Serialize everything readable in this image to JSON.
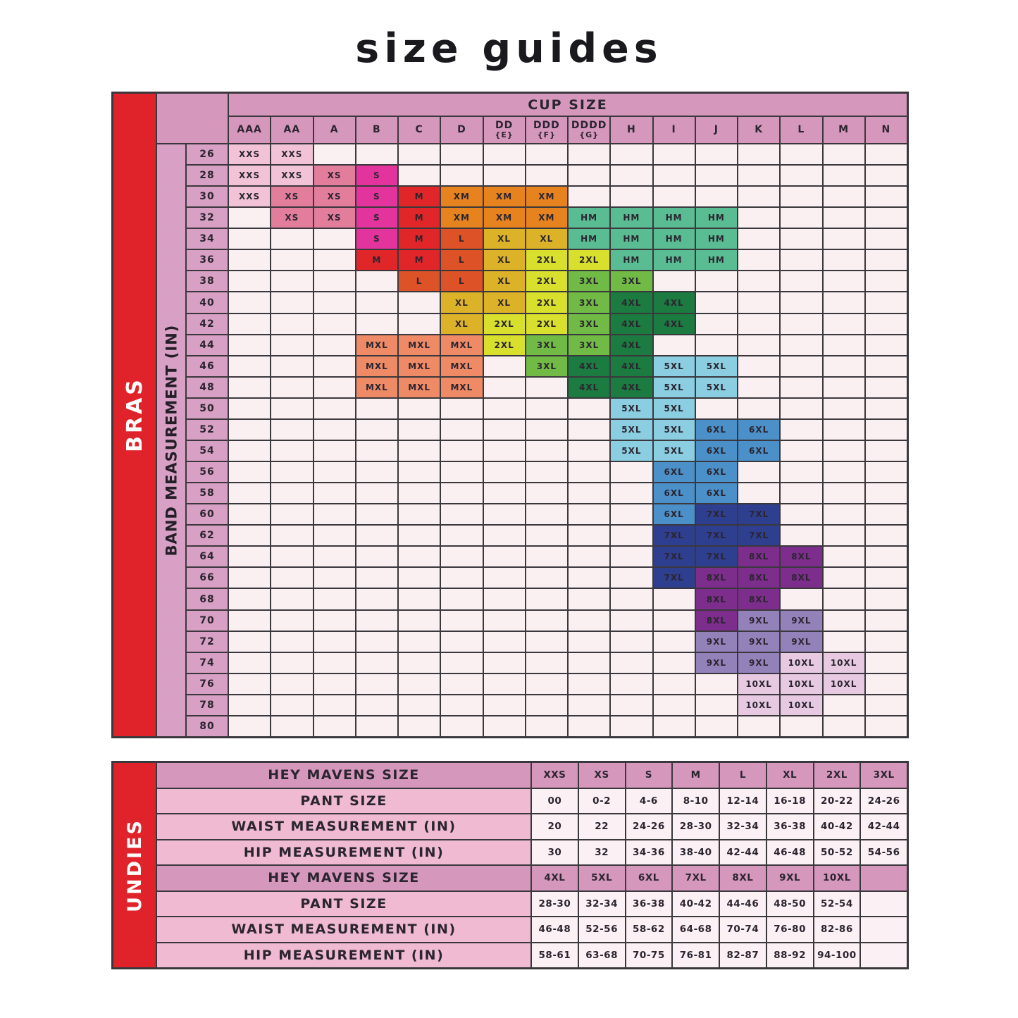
{
  "title": "size guides",
  "colors": {
    "ui": {
      "red": "#e0232b",
      "mauve": "#d697bd",
      "band_pink": "#d8a0c4",
      "label_pink": "#efbad2",
      "value_bg": "#fbf0f4",
      "cell_bg": "#faf0f2",
      "grid": "#3b383d",
      "text_dark": "#2b2530"
    },
    "size_colors": {
      "XXS": "#f2c3d7",
      "XS": "#e27d9c",
      "S": "#e3339d",
      "M": "#e02629",
      "XM": "#e6831e",
      "L": "#dd5226",
      "XL": "#dcb328",
      "2XL": "#d8e02d",
      "3XL": "#70ba45",
      "4XL": "#1b7b40",
      "HM": "#5abc92",
      "MXL": "#ef8a66",
      "5XL": "#8bcee2",
      "6XL": "#4b90c8",
      "7XL": "#2e3f90",
      "8XL": "#7d2d8c",
      "9XL": "#9381ba",
      "10XL": "#e7c9e1"
    }
  },
  "chart_data": [
    {
      "type": "heatmap",
      "name": "bras",
      "side_label": "BRAS",
      "row_axis_label": "BAND MEASUREMENT (IN)",
      "col_axis_label": "CUP SIZE",
      "columns": [
        "AAA",
        "AA",
        "A",
        "B",
        "C",
        "D",
        "DD {E}",
        "DDD {F}",
        "DDDD {G}",
        "H",
        "I",
        "J",
        "K",
        "L",
        "M",
        "N"
      ],
      "rows": [
        {
          "band": "26",
          "cells": [
            "XXS",
            "XXS",
            "",
            "",
            "",
            "",
            "",
            "",
            "",
            "",
            "",
            "",
            "",
            "",
            "",
            ""
          ]
        },
        {
          "band": "28",
          "cells": [
            "XXS",
            "XXS",
            "XS",
            "S",
            "",
            "",
            "",
            "",
            "",
            "",
            "",
            "",
            "",
            "",
            "",
            ""
          ]
        },
        {
          "band": "30",
          "cells": [
            "XXS",
            "XS",
            "XS",
            "S",
            "M",
            "XM",
            "XM",
            "XM",
            "",
            "",
            "",
            "",
            "",
            "",
            "",
            ""
          ]
        },
        {
          "band": "32",
          "cells": [
            "",
            "XS",
            "XS",
            "S",
            "M",
            "XM",
            "XM",
            "XM",
            "HM",
            "HM",
            "HM",
            "HM",
            "",
            "",
            "",
            ""
          ]
        },
        {
          "band": "34",
          "cells": [
            "",
            "",
            "",
            "S",
            "M",
            "L",
            "XL",
            "XL",
            "HM",
            "HM",
            "HM",
            "HM",
            "",
            "",
            "",
            ""
          ]
        },
        {
          "band": "36",
          "cells": [
            "",
            "",
            "",
            "M",
            "M",
            "L",
            "XL",
            "2XL",
            "2XL",
            "HM",
            "HM",
            "HM",
            "",
            "",
            "",
            ""
          ]
        },
        {
          "band": "38",
          "cells": [
            "",
            "",
            "",
            "",
            "L",
            "L",
            "XL",
            "2XL",
            "3XL",
            "3XL",
            "",
            "",
            "",
            "",
            "",
            ""
          ]
        },
        {
          "band": "40",
          "cells": [
            "",
            "",
            "",
            "",
            "",
            "XL",
            "XL",
            "2XL",
            "3XL",
            "4XL",
            "4XL",
            "",
            "",
            "",
            "",
            ""
          ]
        },
        {
          "band": "42",
          "cells": [
            "",
            "",
            "",
            "",
            "",
            "XL",
            "2XL",
            "2XL",
            "3XL",
            "4XL",
            "4XL",
            "",
            "",
            "",
            "",
            ""
          ]
        },
        {
          "band": "44",
          "cells": [
            "",
            "",
            "",
            "MXL",
            "MXL",
            "MXL",
            "2XL",
            "3XL",
            "3XL",
            "4XL",
            "",
            "",
            "",
            "",
            "",
            ""
          ]
        },
        {
          "band": "46",
          "cells": [
            "",
            "",
            "",
            "MXL",
            "MXL",
            "MXL",
            "",
            "3XL",
            "4XL",
            "4XL",
            "5XL",
            "5XL",
            "",
            "",
            "",
            ""
          ]
        },
        {
          "band": "48",
          "cells": [
            "",
            "",
            "",
            "MXL",
            "MXL",
            "MXL",
            "",
            "",
            "4XL",
            "4XL",
            "5XL",
            "5XL",
            "",
            "",
            "",
            ""
          ]
        },
        {
          "band": "50",
          "cells": [
            "",
            "",
            "",
            "",
            "",
            "",
            "",
            "",
            "",
            "5XL",
            "5XL",
            "",
            "",
            "",
            "",
            ""
          ]
        },
        {
          "band": "52",
          "cells": [
            "",
            "",
            "",
            "",
            "",
            "",
            "",
            "",
            "",
            "5XL",
            "5XL",
            "6XL",
            "6XL",
            "",
            "",
            ""
          ]
        },
        {
          "band": "54",
          "cells": [
            "",
            "",
            "",
            "",
            "",
            "",
            "",
            "",
            "",
            "5XL",
            "5XL",
            "6XL",
            "6XL",
            "",
            "",
            ""
          ]
        },
        {
          "band": "56",
          "cells": [
            "",
            "",
            "",
            "",
            "",
            "",
            "",
            "",
            "",
            "",
            "6XL",
            "6XL",
            "",
            "",
            "",
            ""
          ]
        },
        {
          "band": "58",
          "cells": [
            "",
            "",
            "",
            "",
            "",
            "",
            "",
            "",
            "",
            "",
            "6XL",
            "6XL",
            "",
            "",
            "",
            ""
          ]
        },
        {
          "band": "60",
          "cells": [
            "",
            "",
            "",
            "",
            "",
            "",
            "",
            "",
            "",
            "",
            "6XL",
            "7XL",
            "7XL",
            "",
            "",
            ""
          ]
        },
        {
          "band": "62",
          "cells": [
            "",
            "",
            "",
            "",
            "",
            "",
            "",
            "",
            "",
            "",
            "7XL",
            "7XL",
            "7XL",
            "",
            "",
            ""
          ]
        },
        {
          "band": "64",
          "cells": [
            "",
            "",
            "",
            "",
            "",
            "",
            "",
            "",
            "",
            "",
            "7XL",
            "7XL",
            "8XL",
            "8XL",
            "",
            ""
          ]
        },
        {
          "band": "66",
          "cells": [
            "",
            "",
            "",
            "",
            "",
            "",
            "",
            "",
            "",
            "",
            "7XL",
            "8XL",
            "8XL",
            "8XL",
            "",
            ""
          ]
        },
        {
          "band": "68",
          "cells": [
            "",
            "",
            "",
            "",
            "",
            "",
            "",
            "",
            "",
            "",
            "",
            "8XL",
            "8XL",
            "",
            "",
            ""
          ]
        },
        {
          "band": "70",
          "cells": [
            "",
            "",
            "",
            "",
            "",
            "",
            "",
            "",
            "",
            "",
            "",
            "8XL",
            "9XL",
            "9XL",
            "",
            ""
          ]
        },
        {
          "band": "72",
          "cells": [
            "",
            "",
            "",
            "",
            "",
            "",
            "",
            "",
            "",
            "",
            "",
            "9XL",
            "9XL",
            "9XL",
            "",
            ""
          ]
        },
        {
          "band": "74",
          "cells": [
            "",
            "",
            "",
            "",
            "",
            "",
            "",
            "",
            "",
            "",
            "",
            "9XL",
            "9XL",
            "10XL",
            "10XL",
            ""
          ]
        },
        {
          "band": "76",
          "cells": [
            "",
            "",
            "",
            "",
            "",
            "",
            "",
            "",
            "",
            "",
            "",
            "",
            "10XL",
            "10XL",
            "10XL",
            ""
          ]
        },
        {
          "band": "78",
          "cells": [
            "",
            "",
            "",
            "",
            "",
            "",
            "",
            "",
            "",
            "",
            "",
            "",
            "10XL",
            "10XL",
            "",
            ""
          ]
        },
        {
          "band": "80",
          "cells": [
            "",
            "",
            "",
            "",
            "",
            "",
            "",
            "",
            "",
            "",
            "",
            "",
            "",
            "",
            "",
            ""
          ]
        }
      ]
    },
    {
      "type": "table",
      "name": "undies",
      "side_label": "UNDIES",
      "rows": [
        {
          "kind": "header",
          "label": "HEY MAVENS SIZE",
          "values": [
            "XXS",
            "XS",
            "S",
            "M",
            "L",
            "XL",
            "2XL",
            "3XL"
          ]
        },
        {
          "kind": "data",
          "label": "PANT SIZE",
          "values": [
            "00",
            "0-2",
            "4-6",
            "8-10",
            "12-14",
            "16-18",
            "20-22",
            "24-26"
          ]
        },
        {
          "kind": "data",
          "label": "WAIST MEASUREMENT (IN)",
          "values": [
            "20",
            "22",
            "24-26",
            "28-30",
            "32-34",
            "36-38",
            "40-42",
            "42-44"
          ]
        },
        {
          "kind": "data",
          "label": "HIP MEASUREMENT (IN)",
          "values": [
            "30",
            "32",
            "34-36",
            "38-40",
            "42-44",
            "46-48",
            "50-52",
            "54-56"
          ]
        },
        {
          "kind": "header",
          "label": "HEY MAVENS SIZE",
          "values": [
            "4XL",
            "5XL",
            "6XL",
            "7XL",
            "8XL",
            "9XL",
            "10XL",
            ""
          ]
        },
        {
          "kind": "data",
          "label": "PANT SIZE",
          "values": [
            "28-30",
            "32-34",
            "36-38",
            "40-42",
            "44-46",
            "48-50",
            "52-54",
            ""
          ]
        },
        {
          "kind": "data",
          "label": "WAIST MEASUREMENT (IN)",
          "values": [
            "46-48",
            "52-56",
            "58-62",
            "64-68",
            "70-74",
            "76-80",
            "82-86",
            ""
          ]
        },
        {
          "kind": "data",
          "label": "HIP MEASUREMENT (IN)",
          "values": [
            "58-61",
            "63-68",
            "70-75",
            "76-81",
            "82-87",
            "88-92",
            "94-100",
            ""
          ]
        }
      ]
    }
  ]
}
